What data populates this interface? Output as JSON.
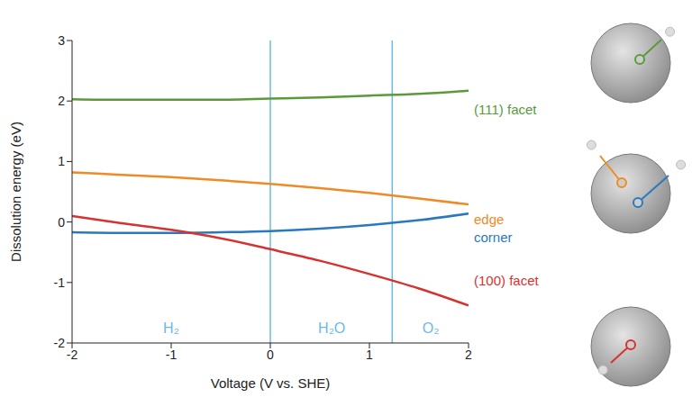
{
  "chart_data": {
    "type": "line",
    "x_label": "Voltage (V vs. SHE)",
    "y_label": "Dissolution energy (eV)",
    "x": [
      -2,
      -1.5,
      -1,
      -0.5,
      0,
      0.5,
      1,
      1.5,
      2
    ],
    "series": [
      {
        "name": "(111) facet",
        "color": "#5a9a3a",
        "values": [
          2.03,
          2.02,
          2.02,
          2.02,
          2.04,
          2.06,
          2.09,
          2.12,
          2.17
        ]
      },
      {
        "name": "edge",
        "color": "#f08a24",
        "values": [
          0.82,
          0.78,
          0.74,
          0.69,
          0.63,
          0.56,
          0.48,
          0.39,
          0.29
        ]
      },
      {
        "name": "corner",
        "color": "#2a78c0",
        "values": [
          -0.17,
          -0.18,
          -0.18,
          -0.17,
          -0.15,
          -0.11,
          -0.05,
          0.03,
          0.14
        ]
      },
      {
        "name": "(100) facet",
        "color": "#d6322f",
        "values": [
          0.1,
          -0.02,
          -0.13,
          -0.27,
          -0.45,
          -0.64,
          -0.86,
          -1.1,
          -1.38
        ]
      }
    ],
    "xlim": [
      -2,
      2
    ],
    "xticks": [
      -2,
      -1,
      0,
      1,
      2
    ],
    "ylim": [
      -2,
      3
    ],
    "yticks": [
      -2,
      -1,
      0,
      1,
      2,
      3
    ],
    "grid": false,
    "vertical_lines": {
      "color": "#6cb8e6",
      "x": [
        0,
        1.23
      ]
    },
    "annotations": [
      {
        "text": "H₂",
        "x": -1,
        "y": -1.75
      },
      {
        "text": "H₂O",
        "x": 0.62,
        "y": -1.75
      },
      {
        "text": "O₂",
        "x": 1.62,
        "y": -1.75
      }
    ]
  }
}
